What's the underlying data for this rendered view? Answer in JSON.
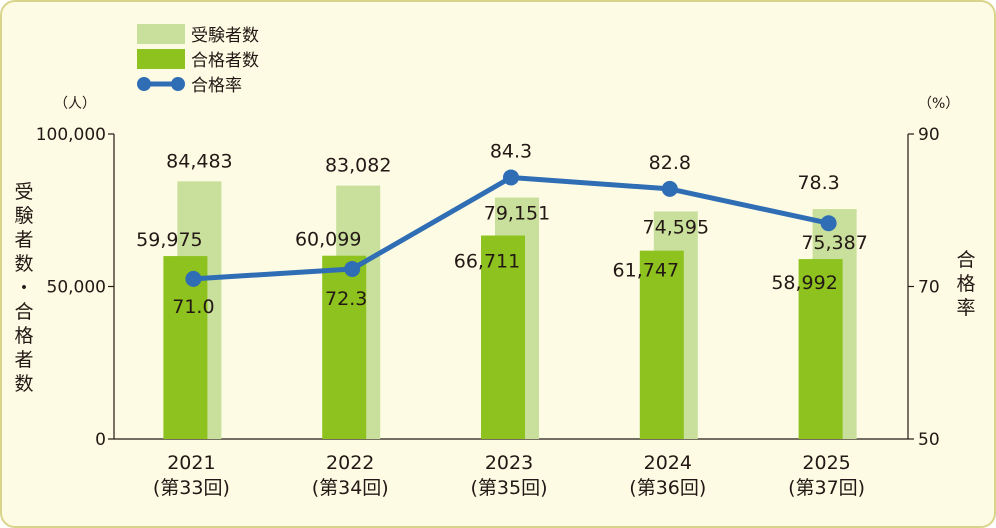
{
  "colors": {
    "background": "#fdfbe3",
    "border": "#d9d48a",
    "applicants": "#c8e09b",
    "passers": "#8dc21f",
    "rate": "#2f6db5",
    "axis": "#231815"
  },
  "chart_data": {
    "type": "bar",
    "legend": {
      "placement": "top-left",
      "applicants": "受験者数",
      "passers": "合格者数",
      "rate": "合格率"
    },
    "left_axis": {
      "unit": "（人）",
      "title": "受験者数・合格者数",
      "ylim": [
        0,
        100000
      ],
      "ticks": [
        {
          "value": 0,
          "label": "0"
        },
        {
          "value": 50000,
          "label": "50,000"
        },
        {
          "value": 100000,
          "label": "100,000"
        }
      ]
    },
    "right_axis": {
      "unit": "（%）",
      "title": "合格率",
      "ylim": [
        50,
        90
      ],
      "ticks": [
        {
          "value": 50,
          "label": "50"
        },
        {
          "value": 70,
          "label": "70"
        },
        {
          "value": 90,
          "label": "90"
        }
      ]
    },
    "categories": [
      {
        "year": "2021",
        "round": "(第33回)"
      },
      {
        "year": "2022",
        "round": "(第34回)"
      },
      {
        "year": "2023",
        "round": "(第35回)"
      },
      {
        "year": "2024",
        "round": "(第36回)"
      },
      {
        "year": "2025",
        "round": "(第37回)"
      }
    ],
    "series": [
      {
        "key": "applicants",
        "type": "bar",
        "values": [
          84483,
          83082,
          79151,
          74595,
          75387
        ],
        "labels": [
          "84,483",
          "83,082",
          "79,151",
          "74,595",
          "75,387"
        ]
      },
      {
        "key": "passers",
        "type": "bar",
        "values": [
          59975,
          60099,
          66711,
          61747,
          58992
        ],
        "labels": [
          "59,975",
          "60,099",
          "66,711",
          "61,747",
          "58,992"
        ]
      },
      {
        "key": "rate",
        "type": "line",
        "values": [
          71.0,
          72.3,
          84.3,
          82.8,
          78.3
        ],
        "labels": [
          "71.0",
          "72.3",
          "84.3",
          "82.8",
          "78.3"
        ]
      }
    ],
    "grid": false
  }
}
